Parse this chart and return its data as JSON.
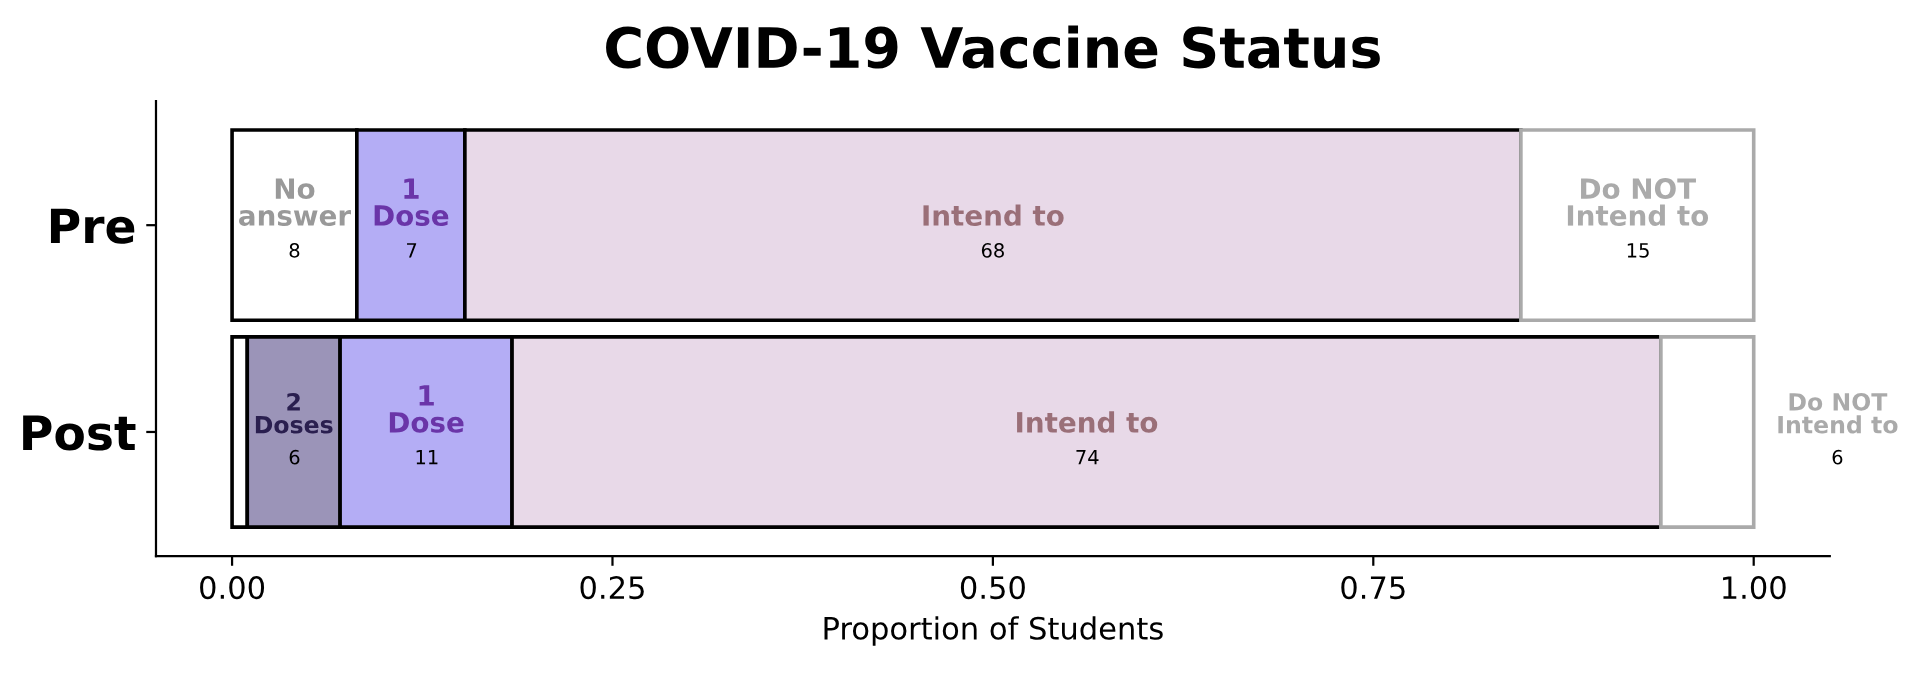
{
  "chart_data": {
    "type": "bar",
    "orientation": "horizontal",
    "stacked": true,
    "title": "COVID-19 Vaccine Status",
    "xlabel": "Proportion of Students",
    "categories": [
      "Pre",
      "Post"
    ],
    "series": [
      {
        "name": "No answer",
        "color": "#ffffff",
        "values": [
          0.082,
          0.01
        ]
      },
      {
        "name": "2 Doses",
        "color": "#9b94b8",
        "values": [
          0,
          0.061
        ]
      },
      {
        "name": "1 Dose",
        "color": "#b4adf5",
        "values": [
          0.071,
          0.113
        ]
      },
      {
        "name": "Intend to",
        "color": "#e8d9e8",
        "values": [
          0.694,
          0.755
        ]
      },
      {
        "name": "Do NOT Intend to",
        "color": "#ffffff",
        "values": [
          0.153,
          0.061
        ]
      }
    ],
    "annotations": [
      {
        "text": "8",
        "x": 0.041,
        "y": "Pre"
      },
      {
        "text": "7",
        "x": 0.118,
        "y": "Pre"
      },
      {
        "text": "68",
        "x": 0.5,
        "y": "Pre"
      },
      {
        "text": "15",
        "x": 0.924,
        "y": "Pre"
      },
      {
        "text": "6",
        "x": 0.041,
        "y": "Post"
      },
      {
        "text": "11",
        "x": 0.128,
        "y": "Post"
      },
      {
        "text": "74",
        "x": 0.562,
        "y": "Post"
      },
      "6"
    ],
    "xlim": [
      -0.05,
      1.05
    ],
    "xticks": [
      {
        "value": 0,
        "label": "0.00"
      },
      {
        "value": 0.25,
        "label": "0.25"
      },
      {
        "value": 0.5,
        "label": "0.50"
      },
      {
        "value": 0.75,
        "label": "0.75"
      },
      {
        "value": 1,
        "label": "1.00"
      }
    ],
    "grid": false,
    "legend": false
  }
}
